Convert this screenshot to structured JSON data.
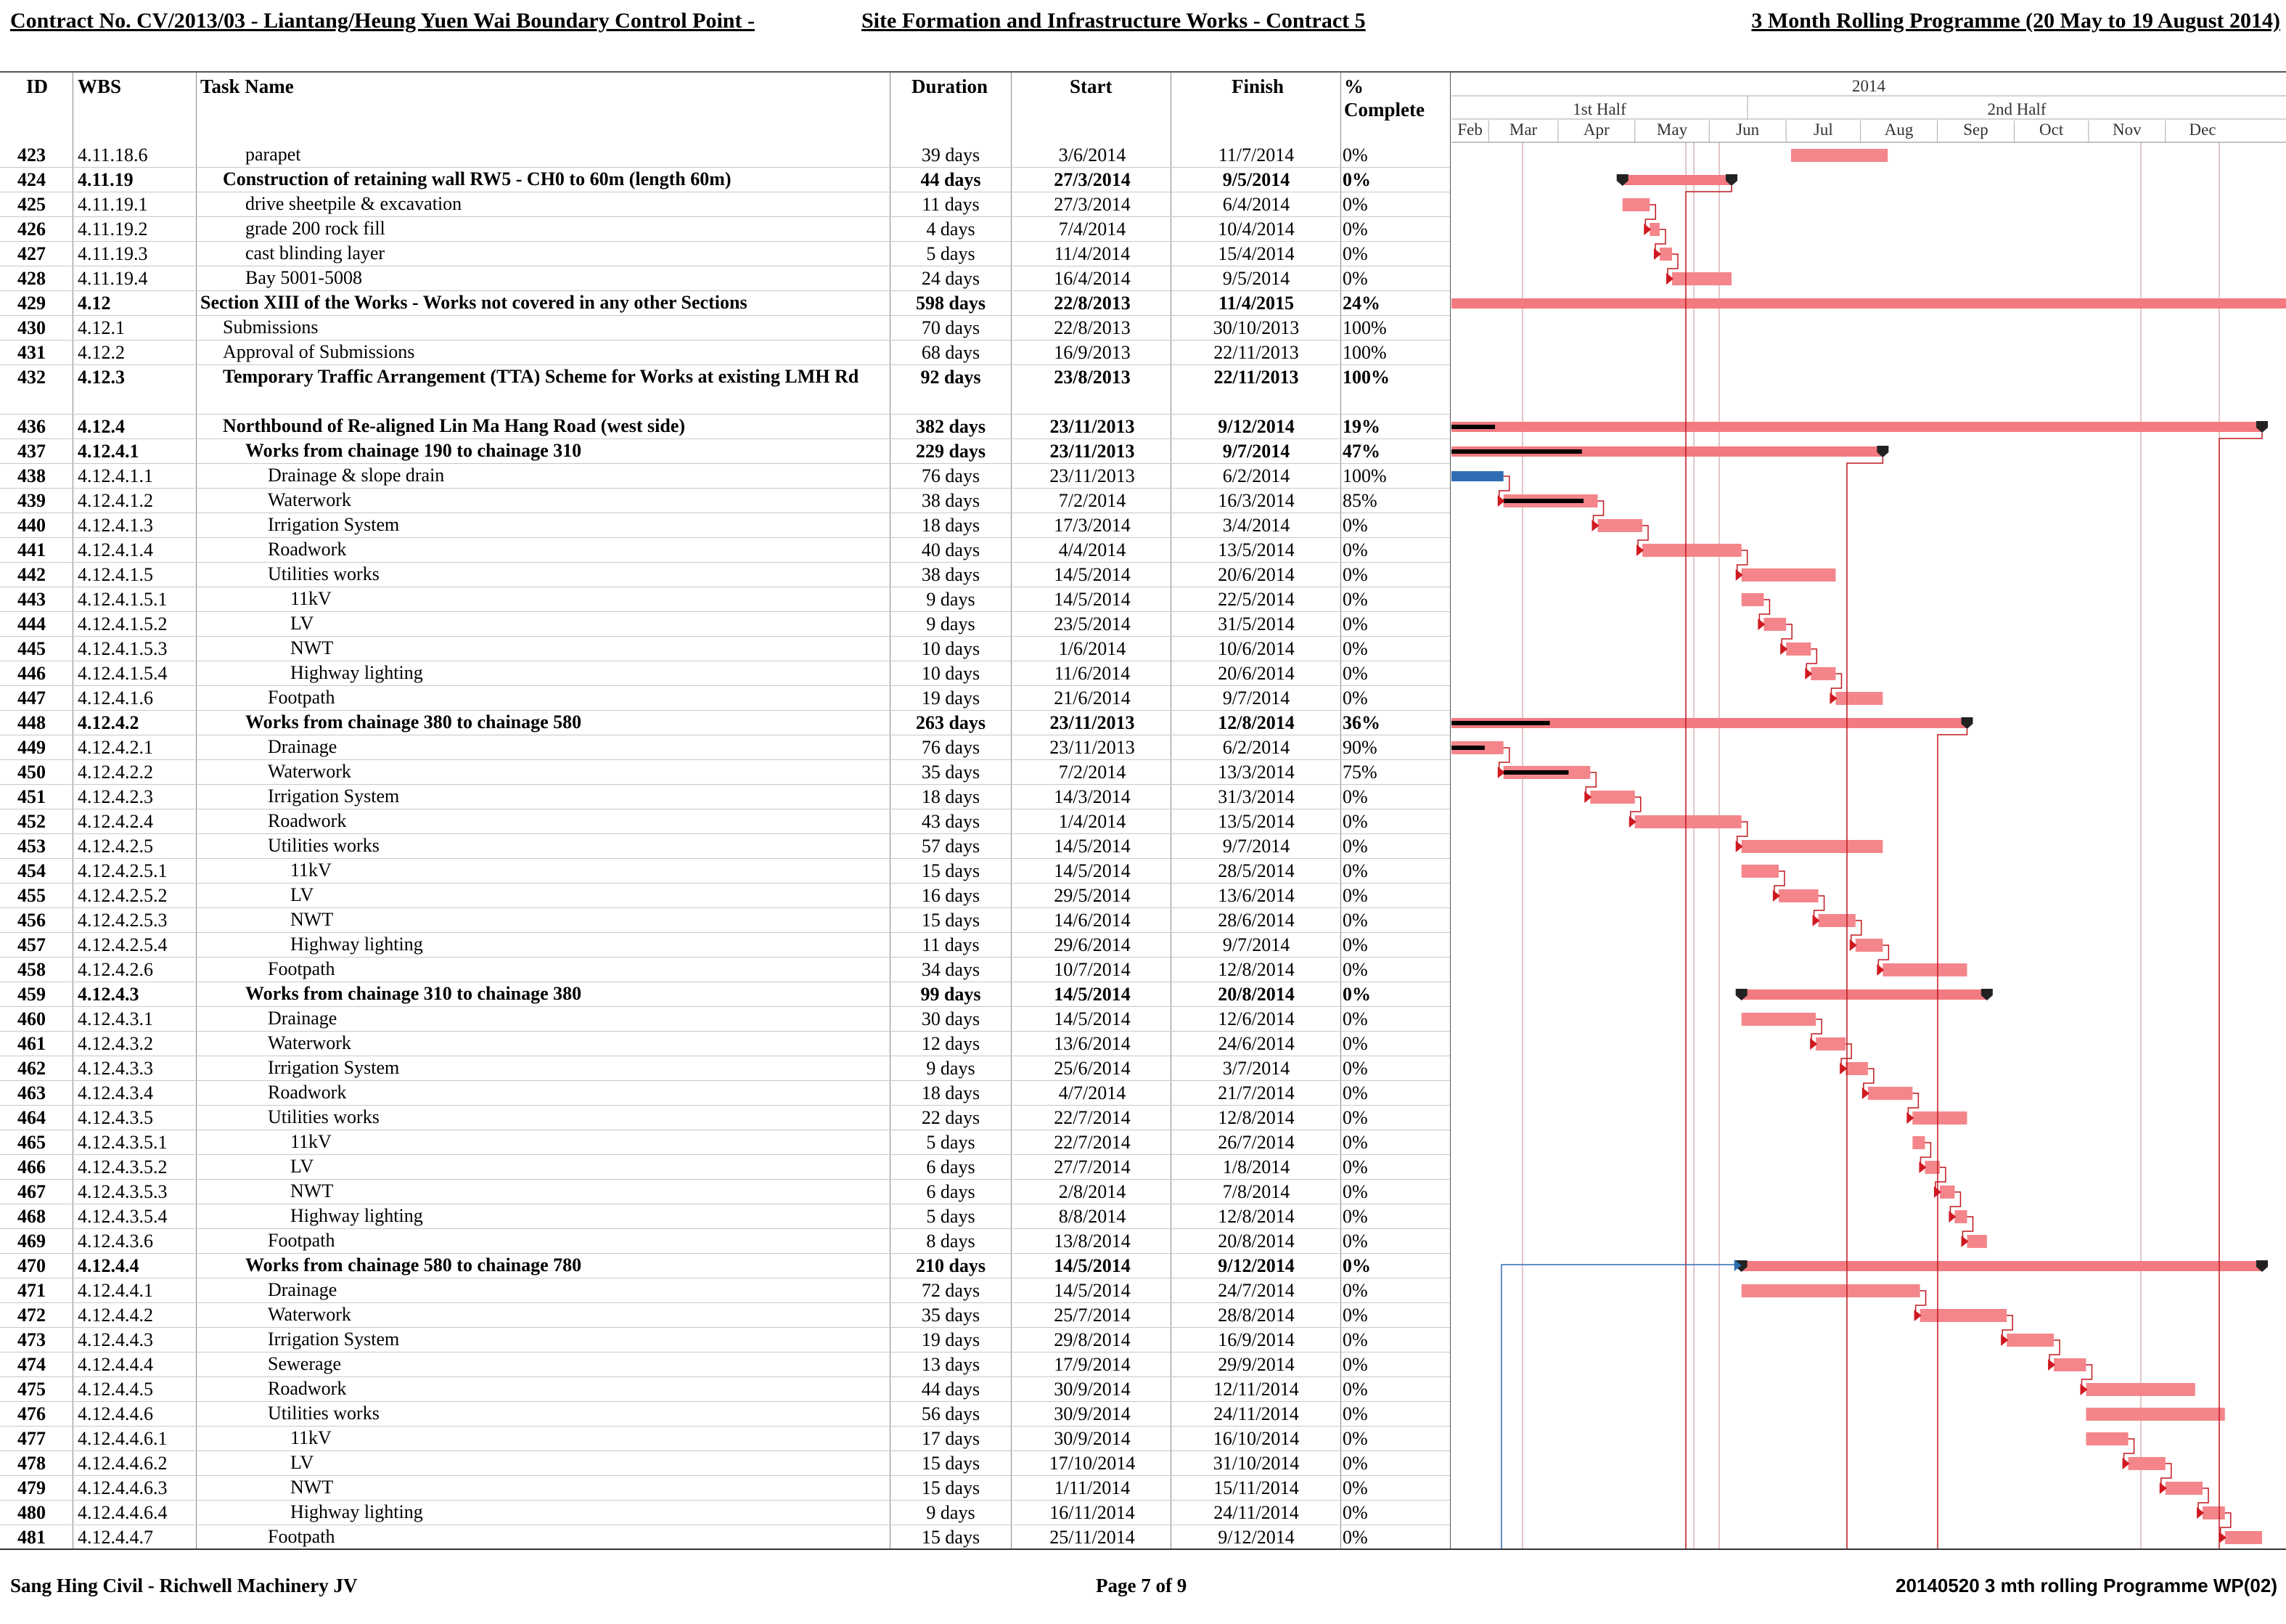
{
  "header": {
    "contract_title": "Contract No. CV/2013/03 - Liantang/Heung Yuen Wai Boundary Control Point -",
    "site_title": "Site Formation and Infrastructure Works - Contract 5",
    "programme_title": "3 Month Rolling  Programme (20 May to 19 August 2014)"
  },
  "columns": {
    "id": "ID",
    "wbs": "WBS",
    "task_name": "Task Name",
    "duration": "Duration",
    "start": "Start",
    "finish": "Finish",
    "pct_line1": "%",
    "pct_line2": "Complete"
  },
  "timeline": {
    "year": "2014",
    "halves": [
      "1st Half",
      "2nd Half"
    ],
    "months": [
      "Feb",
      "Mar",
      "Apr",
      "May",
      "Jun",
      "Jul",
      "Aug",
      "Sep",
      "Oct",
      "Nov",
      "Dec"
    ]
  },
  "tasks": [
    {
      "id": "423",
      "wbs": "4.11.18.6",
      "name": "parapet",
      "duration": "39 days",
      "start": "3/6/2014",
      "finish": "11/7/2014",
      "pct": "0%",
      "bold": false,
      "indent": 4
    },
    {
      "id": "424",
      "wbs": "4.11.19",
      "name": "Construction of retaining wall RW5 - CH0 to 60m (length 60m)",
      "duration": "44 days",
      "start": "27/3/2014",
      "finish": "9/5/2014",
      "pct": "0%",
      "bold": true,
      "indent": 3
    },
    {
      "id": "425",
      "wbs": "4.11.19.1",
      "name": "drive sheetpile & excavation",
      "duration": "11 days",
      "start": "27/3/2014",
      "finish": "6/4/2014",
      "pct": "0%",
      "bold": false,
      "indent": 4
    },
    {
      "id": "426",
      "wbs": "4.11.19.2",
      "name": "grade 200 rock fill",
      "duration": "4 days",
      "start": "7/4/2014",
      "finish": "10/4/2014",
      "pct": "0%",
      "bold": false,
      "indent": 4
    },
    {
      "id": "427",
      "wbs": "4.11.19.3",
      "name": "cast blinding layer",
      "duration": "5 days",
      "start": "11/4/2014",
      "finish": "15/4/2014",
      "pct": "0%",
      "bold": false,
      "indent": 4
    },
    {
      "id": "428",
      "wbs": "4.11.19.4",
      "name": "Bay 5001-5008",
      "duration": "24 days",
      "start": "16/4/2014",
      "finish": "9/5/2014",
      "pct": "0%",
      "bold": false,
      "indent": 4
    },
    {
      "id": "429",
      "wbs": "4.12",
      "name": "Section XIII of the Works - Works not covered in any other Sections",
      "duration": "598 days",
      "start": "22/8/2013",
      "finish": "11/4/2015",
      "pct": "24%",
      "bold": true,
      "indent": 2
    },
    {
      "id": "430",
      "wbs": "4.12.1",
      "name": "Submissions",
      "duration": "70 days",
      "start": "22/8/2013",
      "finish": "30/10/2013",
      "pct": "100%",
      "bold": false,
      "indent": 3
    },
    {
      "id": "431",
      "wbs": "4.12.2",
      "name": "Approval of Submissions",
      "duration": "68 days",
      "start": "16/9/2013",
      "finish": "22/11/2013",
      "pct": "100%",
      "bold": false,
      "indent": 3
    },
    {
      "id": "432",
      "wbs": "4.12.3",
      "name": "Temporary Traffic Arrangement (TTA) Scheme for Works at existing LMH Rd",
      "duration": "92 days",
      "start": "23/8/2013",
      "finish": "22/11/2013",
      "pct": "100%",
      "bold": true,
      "indent": 3,
      "tall": true
    },
    {
      "id": "436",
      "wbs": "4.12.4",
      "name": "Northbound of Re-aligned Lin Ma Hang Road (west side)",
      "duration": "382 days",
      "start": "23/11/2013",
      "finish": "9/12/2014",
      "pct": "19%",
      "bold": true,
      "indent": 3
    },
    {
      "id": "437",
      "wbs": "4.12.4.1",
      "name": "Works from chainage 190 to chainage 310",
      "duration": "229 days",
      "start": "23/11/2013",
      "finish": "9/7/2014",
      "pct": "47%",
      "bold": true,
      "indent": 4
    },
    {
      "id": "438",
      "wbs": "4.12.4.1.1",
      "name": "Drainage & slope drain",
      "duration": "76 days",
      "start": "23/11/2013",
      "finish": "6/2/2014",
      "pct": "100%",
      "bold": false,
      "indent": 5
    },
    {
      "id": "439",
      "wbs": "4.12.4.1.2",
      "name": "Waterwork",
      "duration": "38 days",
      "start": "7/2/2014",
      "finish": "16/3/2014",
      "pct": "85%",
      "bold": false,
      "indent": 5
    },
    {
      "id": "440",
      "wbs": "4.12.4.1.3",
      "name": "Irrigation System",
      "duration": "18 days",
      "start": "17/3/2014",
      "finish": "3/4/2014",
      "pct": "0%",
      "bold": false,
      "indent": 5
    },
    {
      "id": "441",
      "wbs": "4.12.4.1.4",
      "name": "Roadwork",
      "duration": "40 days",
      "start": "4/4/2014",
      "finish": "13/5/2014",
      "pct": "0%",
      "bold": false,
      "indent": 5
    },
    {
      "id": "442",
      "wbs": "4.12.4.1.5",
      "name": "Utilities works",
      "duration": "38 days",
      "start": "14/5/2014",
      "finish": "20/6/2014",
      "pct": "0%",
      "bold": false,
      "indent": 5
    },
    {
      "id": "443",
      "wbs": "4.12.4.1.5.1",
      "name": "11kV",
      "duration": "9 days",
      "start": "14/5/2014",
      "finish": "22/5/2014",
      "pct": "0%",
      "bold": false,
      "indent": 6
    },
    {
      "id": "444",
      "wbs": "4.12.4.1.5.2",
      "name": "LV",
      "duration": "9 days",
      "start": "23/5/2014",
      "finish": "31/5/2014",
      "pct": "0%",
      "bold": false,
      "indent": 6
    },
    {
      "id": "445",
      "wbs": "4.12.4.1.5.3",
      "name": "NWT",
      "duration": "10 days",
      "start": "1/6/2014",
      "finish": "10/6/2014",
      "pct": "0%",
      "bold": false,
      "indent": 6
    },
    {
      "id": "446",
      "wbs": "4.12.4.1.5.4",
      "name": "Highway lighting",
      "duration": "10 days",
      "start": "11/6/2014",
      "finish": "20/6/2014",
      "pct": "0%",
      "bold": false,
      "indent": 6
    },
    {
      "id": "447",
      "wbs": "4.12.4.1.6",
      "name": "Footpath",
      "duration": "19 days",
      "start": "21/6/2014",
      "finish": "9/7/2014",
      "pct": "0%",
      "bold": false,
      "indent": 5
    },
    {
      "id": "448",
      "wbs": "4.12.4.2",
      "name": "Works from chainage 380 to chainage 580",
      "duration": "263 days",
      "start": "23/11/2013",
      "finish": "12/8/2014",
      "pct": "36%",
      "bold": true,
      "indent": 4
    },
    {
      "id": "449",
      "wbs": "4.12.4.2.1",
      "name": "Drainage",
      "duration": "76 days",
      "start": "23/11/2013",
      "finish": "6/2/2014",
      "pct": "90%",
      "bold": false,
      "indent": 5
    },
    {
      "id": "450",
      "wbs": "4.12.4.2.2",
      "name": "Waterwork",
      "duration": "35 days",
      "start": "7/2/2014",
      "finish": "13/3/2014",
      "pct": "75%",
      "bold": false,
      "indent": 5
    },
    {
      "id": "451",
      "wbs": "4.12.4.2.3",
      "name": "Irrigation System",
      "duration": "18 days",
      "start": "14/3/2014",
      "finish": "31/3/2014",
      "pct": "0%",
      "bold": false,
      "indent": 5
    },
    {
      "id": "452",
      "wbs": "4.12.4.2.4",
      "name": "Roadwork",
      "duration": "43 days",
      "start": "1/4/2014",
      "finish": "13/5/2014",
      "pct": "0%",
      "bold": false,
      "indent": 5
    },
    {
      "id": "453",
      "wbs": "4.12.4.2.5",
      "name": "Utilities works",
      "duration": "57 days",
      "start": "14/5/2014",
      "finish": "9/7/2014",
      "pct": "0%",
      "bold": false,
      "indent": 5
    },
    {
      "id": "454",
      "wbs": "4.12.4.2.5.1",
      "name": "11kV",
      "duration": "15 days",
      "start": "14/5/2014",
      "finish": "28/5/2014",
      "pct": "0%",
      "bold": false,
      "indent": 6
    },
    {
      "id": "455",
      "wbs": "4.12.4.2.5.2",
      "name": "LV",
      "duration": "16 days",
      "start": "29/5/2014",
      "finish": "13/6/2014",
      "pct": "0%",
      "bold": false,
      "indent": 6
    },
    {
      "id": "456",
      "wbs": "4.12.4.2.5.3",
      "name": "NWT",
      "duration": "15 days",
      "start": "14/6/2014",
      "finish": "28/6/2014",
      "pct": "0%",
      "bold": false,
      "indent": 6
    },
    {
      "id": "457",
      "wbs": "4.12.4.2.5.4",
      "name": "Highway lighting",
      "duration": "11 days",
      "start": "29/6/2014",
      "finish": "9/7/2014",
      "pct": "0%",
      "bold": false,
      "indent": 6
    },
    {
      "id": "458",
      "wbs": "4.12.4.2.6",
      "name": "Footpath",
      "duration": "34 days",
      "start": "10/7/2014",
      "finish": "12/8/2014",
      "pct": "0%",
      "bold": false,
      "indent": 5
    },
    {
      "id": "459",
      "wbs": "4.12.4.3",
      "name": "Works from chainage 310 to chainage 380",
      "duration": "99 days",
      "start": "14/5/2014",
      "finish": "20/8/2014",
      "pct": "0%",
      "bold": true,
      "indent": 4
    },
    {
      "id": "460",
      "wbs": "4.12.4.3.1",
      "name": "Drainage",
      "duration": "30 days",
      "start": "14/5/2014",
      "finish": "12/6/2014",
      "pct": "0%",
      "bold": false,
      "indent": 5
    },
    {
      "id": "461",
      "wbs": "4.12.4.3.2",
      "name": "Waterwork",
      "duration": "12 days",
      "start": "13/6/2014",
      "finish": "24/6/2014",
      "pct": "0%",
      "bold": false,
      "indent": 5
    },
    {
      "id": "462",
      "wbs": "4.12.4.3.3",
      "name": "Irrigation System",
      "duration": "9 days",
      "start": "25/6/2014",
      "finish": "3/7/2014",
      "pct": "0%",
      "bold": false,
      "indent": 5
    },
    {
      "id": "463",
      "wbs": "4.12.4.3.4",
      "name": "Roadwork",
      "duration": "18 days",
      "start": "4/7/2014",
      "finish": "21/7/2014",
      "pct": "0%",
      "bold": false,
      "indent": 5
    },
    {
      "id": "464",
      "wbs": "4.12.4.3.5",
      "name": "Utilities works",
      "duration": "22 days",
      "start": "22/7/2014",
      "finish": "12/8/2014",
      "pct": "0%",
      "bold": false,
      "indent": 5
    },
    {
      "id": "465",
      "wbs": "4.12.4.3.5.1",
      "name": "11kV",
      "duration": "5 days",
      "start": "22/7/2014",
      "finish": "26/7/2014",
      "pct": "0%",
      "bold": false,
      "indent": 6
    },
    {
      "id": "466",
      "wbs": "4.12.4.3.5.2",
      "name": "LV",
      "duration": "6 days",
      "start": "27/7/2014",
      "finish": "1/8/2014",
      "pct": "0%",
      "bold": false,
      "indent": 6
    },
    {
      "id": "467",
      "wbs": "4.12.4.3.5.3",
      "name": "NWT",
      "duration": "6 days",
      "start": "2/8/2014",
      "finish": "7/8/2014",
      "pct": "0%",
      "bold": false,
      "indent": 6
    },
    {
      "id": "468",
      "wbs": "4.12.4.3.5.4",
      "name": "Highway lighting",
      "duration": "5 days",
      "start": "8/8/2014",
      "finish": "12/8/2014",
      "pct": "0%",
      "bold": false,
      "indent": 6
    },
    {
      "id": "469",
      "wbs": "4.12.4.3.6",
      "name": "Footpath",
      "duration": "8 days",
      "start": "13/8/2014",
      "finish": "20/8/2014",
      "pct": "0%",
      "bold": false,
      "indent": 5
    },
    {
      "id": "470",
      "wbs": "4.12.4.4",
      "name": "Works from chainage 580 to chainage 780",
      "duration": "210 days",
      "start": "14/5/2014",
      "finish": "9/12/2014",
      "pct": "0%",
      "bold": true,
      "indent": 4
    },
    {
      "id": "471",
      "wbs": "4.12.4.4.1",
      "name": "Drainage",
      "duration": "72 days",
      "start": "14/5/2014",
      "finish": "24/7/2014",
      "pct": "0%",
      "bold": false,
      "indent": 5
    },
    {
      "id": "472",
      "wbs": "4.12.4.4.2",
      "name": "Waterwork",
      "duration": "35 days",
      "start": "25/7/2014",
      "finish": "28/8/2014",
      "pct": "0%",
      "bold": false,
      "indent": 5
    },
    {
      "id": "473",
      "wbs": "4.12.4.4.3",
      "name": "Irrigation System",
      "duration": "19 days",
      "start": "29/8/2014",
      "finish": "16/9/2014",
      "pct": "0%",
      "bold": false,
      "indent": 5
    },
    {
      "id": "474",
      "wbs": "4.12.4.4.4",
      "name": "Sewerage",
      "duration": "13 days",
      "start": "17/9/2014",
      "finish": "29/9/2014",
      "pct": "0%",
      "bold": false,
      "indent": 5
    },
    {
      "id": "475",
      "wbs": "4.12.4.4.5",
      "name": "Roadwork",
      "duration": "44 days",
      "start": "30/9/2014",
      "finish": "12/11/2014",
      "pct": "0%",
      "bold": false,
      "indent": 5
    },
    {
      "id": "476",
      "wbs": "4.12.4.4.6",
      "name": "Utilities works",
      "duration": "56 days",
      "start": "30/9/2014",
      "finish": "24/11/2014",
      "pct": "0%",
      "bold": false,
      "indent": 5
    },
    {
      "id": "477",
      "wbs": "4.12.4.4.6.1",
      "name": "11kV",
      "duration": "17 days",
      "start": "30/9/2014",
      "finish": "16/10/2014",
      "pct": "0%",
      "bold": false,
      "indent": 6
    },
    {
      "id": "478",
      "wbs": "4.12.4.4.6.2",
      "name": "LV",
      "duration": "15 days",
      "start": "17/10/2014",
      "finish": "31/10/2014",
      "pct": "0%",
      "bold": false,
      "indent": 6
    },
    {
      "id": "479",
      "wbs": "4.12.4.4.6.3",
      "name": "NWT",
      "duration": "15 days",
      "start": "1/11/2014",
      "finish": "15/11/2014",
      "pct": "0%",
      "bold": false,
      "indent": 6
    },
    {
      "id": "480",
      "wbs": "4.12.4.4.6.4",
      "name": "Highway lighting",
      "duration": "9 days",
      "start": "16/11/2014",
      "finish": "24/11/2014",
      "pct": "0%",
      "bold": false,
      "indent": 6
    },
    {
      "id": "481",
      "wbs": "4.12.4.4.7",
      "name": "Footpath",
      "duration": "15 days",
      "start": "25/11/2014",
      "finish": "9/12/2014",
      "pct": "0%",
      "bold": false,
      "indent": 5
    }
  ],
  "footer": {
    "left": "Sang Hing Civil - Richwell Machinery JV",
    "page": "Page 7 of 9",
    "right": "20140520 3 mth rolling Programme WP(02)"
  }
}
